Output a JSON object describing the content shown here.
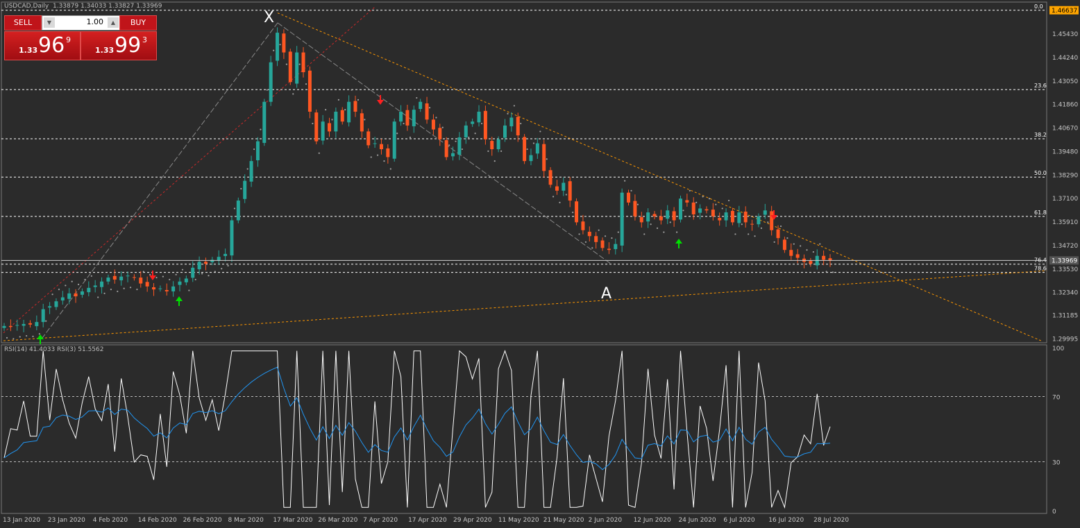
{
  "header": {
    "symbol": "USDCAD,Daily",
    "ohlc": "1.33879 1.34033 1.33827 1.33969"
  },
  "trade_panel": {
    "sell_label": "SELL",
    "buy_label": "BUY",
    "lot": "1.00",
    "sell_prefix": "1.33",
    "sell_big": "96",
    "sell_sup": "9",
    "buy_prefix": "1.33",
    "buy_big": "99",
    "buy_sup": "3"
  },
  "price_axis": [
    "1.45430",
    "1.44240",
    "1.43050",
    "1.41860",
    "1.40670",
    "1.39480",
    "1.38290",
    "1.37100",
    "1.35910",
    "1.34720",
    "1.33530",
    "1.32340",
    "1.31185",
    "1.29995"
  ],
  "current_price": "1.33969",
  "top_price": "1.46637",
  "fib_levels": [
    {
      "label": "0.0",
      "price": 1.46637
    },
    {
      "label": "23.6",
      "price": 1.4262
    },
    {
      "label": "38.2",
      "price": 1.4013
    },
    {
      "label": "50.0",
      "price": 1.3819
    },
    {
      "label": "61.8",
      "price": 1.362
    },
    {
      "label": "76.4",
      "price": 1.3378
    },
    {
      "label": "78.6",
      "price": 1.3336
    }
  ],
  "pattern_labels": [
    "X",
    "A"
  ],
  "date_axis": [
    "13 Jan 2020",
    "23 Jan 2020",
    "4 Feb 2020",
    "14 Feb 2020",
    "26 Feb 2020",
    "8 Mar 2020",
    "17 Mar 2020",
    "26 Mar 2020",
    "7 Apr 2020",
    "17 Apr 2020",
    "29 Apr 2020",
    "11 May 2020",
    "21 May 2020",
    "2 Jun 2020",
    "12 Jun 2020",
    "24 Jun 2020",
    "6 Jul 2020",
    "16 Jul 2020",
    "28 Jul 2020"
  ],
  "rsi": {
    "label": "RSI(14) 41.4033  RSI(3) 51.5562",
    "levels": [
      "100",
      "70",
      "30",
      "0"
    ]
  },
  "colors": {
    "bg": "#2b2b2b",
    "bull": "#26a69a",
    "bear": "#ff5722",
    "fib": "#ffffff",
    "trend": "#ff9800",
    "rsi_fast": "#ffffff",
    "rsi_slow": "#2196f3",
    "sell_arrow": "#ff1f1f",
    "buy_arrow": "#00e000",
    "price_tag": "#ffa500"
  },
  "chart_data": {
    "type": "candlestick",
    "close": [
      1.3065,
      1.306,
      1.307,
      1.3075,
      1.3072,
      1.3085,
      1.315,
      1.3165,
      1.319,
      1.321,
      1.323,
      1.3215,
      1.324,
      1.3258,
      1.327,
      1.329,
      1.331,
      1.33,
      1.3315,
      1.332,
      1.331,
      1.328,
      1.3265,
      1.325,
      1.3255,
      1.324,
      1.3265,
      1.329,
      1.3305,
      1.336,
      1.339,
      1.338,
      1.34,
      1.3415,
      1.343,
      1.36,
      1.37,
      1.38,
      1.39,
      1.4,
      1.42,
      1.44,
      1.455,
      1.445,
      1.43,
      1.445,
      1.435,
      1.415,
      1.4,
      1.41,
      1.405,
      1.415,
      1.41,
      1.42,
      1.415,
      1.405,
      1.398,
      1.399,
      1.396,
      1.392,
      1.41,
      1.415,
      1.408,
      1.416,
      1.42,
      1.411,
      1.406,
      1.401,
      1.392,
      1.394,
      1.402,
      1.408,
      1.41,
      1.415,
      1.401,
      1.396,
      1.401,
      1.408,
      1.412,
      1.403,
      1.39,
      1.393,
      1.399,
      1.385,
      1.378,
      1.375,
      1.379,
      1.37,
      1.359,
      1.355,
      1.352,
      1.349,
      1.346,
      1.345,
      1.348,
      1.374,
      1.369,
      1.362,
      1.359,
      1.364,
      1.362,
      1.36,
      1.365,
      1.36,
      1.371,
      1.369,
      1.363,
      1.366,
      1.365,
      1.362,
      1.36,
      1.364,
      1.359,
      1.364,
      1.359,
      1.358,
      1.362,
      1.365,
      1.355,
      1.351,
      1.345,
      1.342,
      1.341,
      1.339,
      1.338,
      1.342,
      1.34,
      1.3397
    ],
    "rsi14_last": 41.4033,
    "rsi3_last": 51.5562
  }
}
